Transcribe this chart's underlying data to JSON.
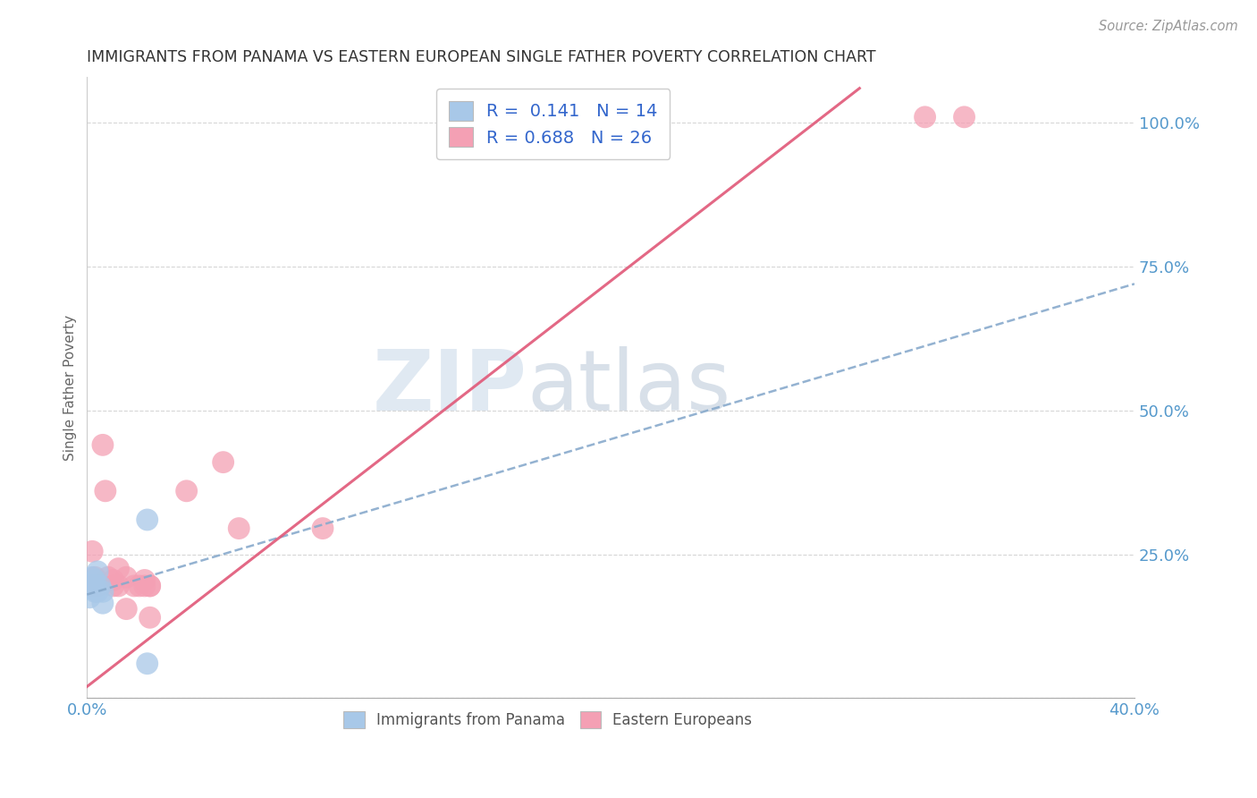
{
  "title": "IMMIGRANTS FROM PANAMA VS EASTERN EUROPEAN SINGLE FATHER POVERTY CORRELATION CHART",
  "source": "Source: ZipAtlas.com",
  "ylabel": "Single Father Poverty",
  "xlim": [
    0.0,
    0.4
  ],
  "ylim": [
    0.0,
    1.08
  ],
  "blue_R": 0.141,
  "blue_N": 14,
  "pink_R": 0.688,
  "pink_N": 26,
  "blue_color": "#a8c8e8",
  "pink_color": "#f4a0b4",
  "blue_line_color": "#88aacc",
  "pink_line_color": "#e05878",
  "watermark_zip": "ZIP",
  "watermark_atlas": "atlas",
  "blue_line_x": [
    0.0,
    0.4
  ],
  "blue_line_y": [
    0.18,
    0.72
  ],
  "pink_line_x": [
    0.0,
    0.295
  ],
  "pink_line_y": [
    0.02,
    1.06
  ],
  "blue_points_x": [
    0.001,
    0.001,
    0.002,
    0.002,
    0.003,
    0.003,
    0.003,
    0.004,
    0.004,
    0.005,
    0.006,
    0.006,
    0.023,
    0.023
  ],
  "blue_points_y": [
    0.195,
    0.175,
    0.21,
    0.19,
    0.195,
    0.185,
    0.205,
    0.22,
    0.185,
    0.195,
    0.185,
    0.165,
    0.31,
    0.06
  ],
  "pink_points_x": [
    0.001,
    0.002,
    0.003,
    0.004,
    0.006,
    0.007,
    0.008,
    0.01,
    0.01,
    0.012,
    0.012,
    0.015,
    0.015,
    0.018,
    0.02,
    0.022,
    0.022,
    0.024,
    0.024,
    0.024,
    0.038,
    0.052,
    0.058,
    0.09,
    0.32,
    0.335
  ],
  "pink_points_y": [
    0.195,
    0.255,
    0.21,
    0.195,
    0.44,
    0.36,
    0.21,
    0.195,
    0.205,
    0.225,
    0.195,
    0.21,
    0.155,
    0.195,
    0.195,
    0.195,
    0.205,
    0.195,
    0.195,
    0.14,
    0.36,
    0.41,
    0.295,
    0.295,
    1.01,
    1.01
  ]
}
